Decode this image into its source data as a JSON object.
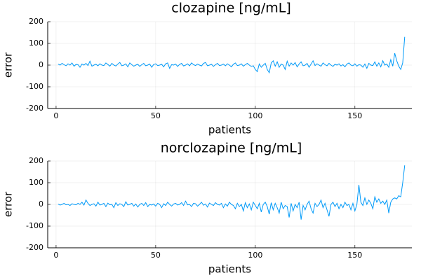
{
  "chart_data": [
    {
      "type": "line",
      "title": "clozapine [ng/mL]",
      "x_label": "patients",
      "y_label": "error",
      "color": "#009af9",
      "grid": true,
      "xlim": [
        -4.2,
        178.6
      ],
      "xticks": [
        0,
        50,
        100,
        150
      ],
      "ylim": [
        -200,
        200
      ],
      "yticks": [
        -200,
        -100,
        0,
        100,
        200
      ],
      "x": [
        1,
        2,
        3,
        4,
        5,
        6,
        7,
        8,
        9,
        10,
        11,
        12,
        13,
        14,
        15,
        16,
        17,
        18,
        19,
        20,
        21,
        22,
        23,
        24,
        25,
        26,
        27,
        28,
        29,
        30,
        31,
        32,
        33,
        34,
        35,
        36,
        37,
        38,
        39,
        40,
        41,
        42,
        43,
        44,
        45,
        46,
        47,
        48,
        49,
        50,
        51,
        52,
        53,
        54,
        55,
        56,
        57,
        58,
        59,
        60,
        61,
        62,
        63,
        64,
        65,
        66,
        67,
        68,
        69,
        70,
        71,
        72,
        73,
        74,
        75,
        76,
        77,
        78,
        79,
        80,
        81,
        82,
        83,
        84,
        85,
        86,
        87,
        88,
        89,
        90,
        91,
        92,
        93,
        94,
        95,
        96,
        97,
        98,
        99,
        100,
        101,
        102,
        103,
        104,
        105,
        106,
        107,
        108,
        109,
        110,
        111,
        112,
        113,
        114,
        115,
        116,
        117,
        118,
        119,
        120,
        121,
        122,
        123,
        124,
        125,
        126,
        127,
        128,
        129,
        130,
        131,
        132,
        133,
        134,
        135,
        136,
        137,
        138,
        139,
        140,
        141,
        142,
        143,
        144,
        145,
        146,
        147,
        148,
        149,
        150,
        151,
        152,
        153,
        154,
        155,
        156,
        157,
        158,
        159,
        160,
        161,
        162,
        163,
        164,
        165,
        166,
        167,
        168,
        169,
        170,
        171,
        172,
        173,
        174,
        175
      ],
      "values": [
        5,
        0,
        8,
        2,
        -3,
        6,
        0,
        10,
        -5,
        3,
        2,
        -10,
        5,
        0,
        8,
        -2,
        18,
        -5,
        0,
        4,
        -3,
        6,
        0,
        -2,
        10,
        3,
        -5,
        8,
        0,
        -4,
        5,
        12,
        -3,
        0,
        6,
        -8,
        10,
        2,
        -5,
        0,
        4,
        -6,
        2,
        8,
        -3,
        0,
        5,
        -10,
        3,
        6,
        -2,
        0,
        4,
        -8,
        6,
        10,
        -15,
        2,
        0,
        5,
        -6,
        3,
        8,
        -4,
        0,
        6,
        -3,
        10,
        2,
        -2,
        5,
        0,
        -4,
        8,
        12,
        -3,
        0,
        4,
        -6,
        2,
        8,
        -2,
        0,
        5,
        -3,
        6,
        0,
        -8,
        4,
        10,
        -2,
        0,
        6,
        -5,
        2,
        8,
        0,
        -6,
        -3,
        -20,
        -30,
        5,
        -10,
        0,
        8,
        -20,
        -35,
        10,
        20,
        -5,
        15,
        -10,
        5,
        0,
        -20,
        18,
        -5,
        10,
        0,
        12,
        -8,
        5,
        15,
        -3,
        0,
        8,
        -10,
        5,
        20,
        -2,
        6,
        0,
        -5,
        10,
        2,
        -3,
        8,
        0,
        -6,
        4,
        0,
        6,
        -4,
        2,
        -8,
        5,
        10,
        0,
        -3,
        6,
        -5,
        2,
        0,
        -10,
        5,
        -15,
        8,
        0,
        -2,
        15,
        -5,
        10,
        -8,
        20,
        0,
        5,
        -10,
        25,
        -5,
        55,
        20,
        -5,
        -20,
        10,
        130
      ]
    },
    {
      "type": "line",
      "title": "norclozapine [ng/mL]",
      "x_label": "patients",
      "y_label": "error",
      "color": "#009af9",
      "grid": true,
      "xlim": [
        -4.2,
        178.6
      ],
      "xticks": [
        0,
        50,
        100,
        150
      ],
      "ylim": [
        -200,
        200
      ],
      "yticks": [
        -200,
        -100,
        0,
        100,
        200
      ],
      "x": [
        1,
        2,
        3,
        4,
        5,
        6,
        7,
        8,
        9,
        10,
        11,
        12,
        13,
        14,
        15,
        16,
        17,
        18,
        19,
        20,
        21,
        22,
        23,
        24,
        25,
        26,
        27,
        28,
        29,
        30,
        31,
        32,
        33,
        34,
        35,
        36,
        37,
        38,
        39,
        40,
        41,
        42,
        43,
        44,
        45,
        46,
        47,
        48,
        49,
        50,
        51,
        52,
        53,
        54,
        55,
        56,
        57,
        58,
        59,
        60,
        61,
        62,
        63,
        64,
        65,
        66,
        67,
        68,
        69,
        70,
        71,
        72,
        73,
        74,
        75,
        76,
        77,
        78,
        79,
        80,
        81,
        82,
        83,
        84,
        85,
        86,
        87,
        88,
        89,
        90,
        91,
        92,
        93,
        94,
        95,
        96,
        97,
        98,
        99,
        100,
        101,
        102,
        103,
        104,
        105,
        106,
        107,
        108,
        109,
        110,
        111,
        112,
        113,
        114,
        115,
        116,
        117,
        118,
        119,
        120,
        121,
        122,
        123,
        124,
        125,
        126,
        127,
        128,
        129,
        130,
        131,
        132,
        133,
        134,
        135,
        136,
        137,
        138,
        139,
        140,
        141,
        142,
        143,
        144,
        145,
        146,
        147,
        148,
        149,
        150,
        151,
        152,
        153,
        154,
        155,
        156,
        157,
        158,
        159,
        160,
        161,
        162,
        163,
        164,
        165,
        166,
        167,
        168,
        169,
        170,
        171,
        172,
        173,
        174,
        175
      ],
      "values": [
        2,
        -3,
        0,
        5,
        -2,
        0,
        -5,
        3,
        0,
        -2,
        5,
        0,
        10,
        -3,
        20,
        5,
        -5,
        0,
        3,
        -8,
        10,
        -3,
        0,
        5,
        -10,
        6,
        -2,
        0,
        -15,
        8,
        -5,
        3,
        0,
        -10,
        12,
        -3,
        0,
        5,
        -8,
        2,
        -12,
        0,
        5,
        -5,
        8,
        -10,
        0,
        -3,
        2,
        -8,
        5,
        0,
        -15,
        3,
        -5,
        10,
        0,
        -8,
        2,
        5,
        -3,
        0,
        8,
        -5,
        15,
        -2,
        0,
        -10,
        5,
        3,
        -8,
        0,
        10,
        -4,
        2,
        -12,
        6,
        0,
        -5,
        8,
        0,
        -3,
        5,
        -15,
        2,
        -8,
        10,
        0,
        -5,
        -20,
        5,
        -10,
        0,
        -30,
        8,
        -15,
        2,
        -25,
        10,
        -5,
        -20,
        5,
        -35,
        0,
        10,
        -10,
        -45,
        8,
        -25,
        5,
        -15,
        -40,
        10,
        -20,
        -5,
        -10,
        -60,
        5,
        -30,
        0,
        -15,
        10,
        -70,
        -5,
        -25,
        0,
        15,
        -20,
        -40,
        5,
        -10,
        0,
        20,
        -15,
        5,
        -25,
        -55,
        0,
        10,
        -10,
        5,
        -20,
        0,
        -15,
        10,
        -5,
        0,
        -25,
        5,
        -30,
        0,
        90,
        10,
        -5,
        30,
        0,
        20,
        5,
        -20,
        35,
        10,
        25,
        5,
        15,
        0,
        20,
        -40,
        10,
        25,
        30,
        25,
        40,
        35,
        100,
        180
      ]
    }
  ]
}
